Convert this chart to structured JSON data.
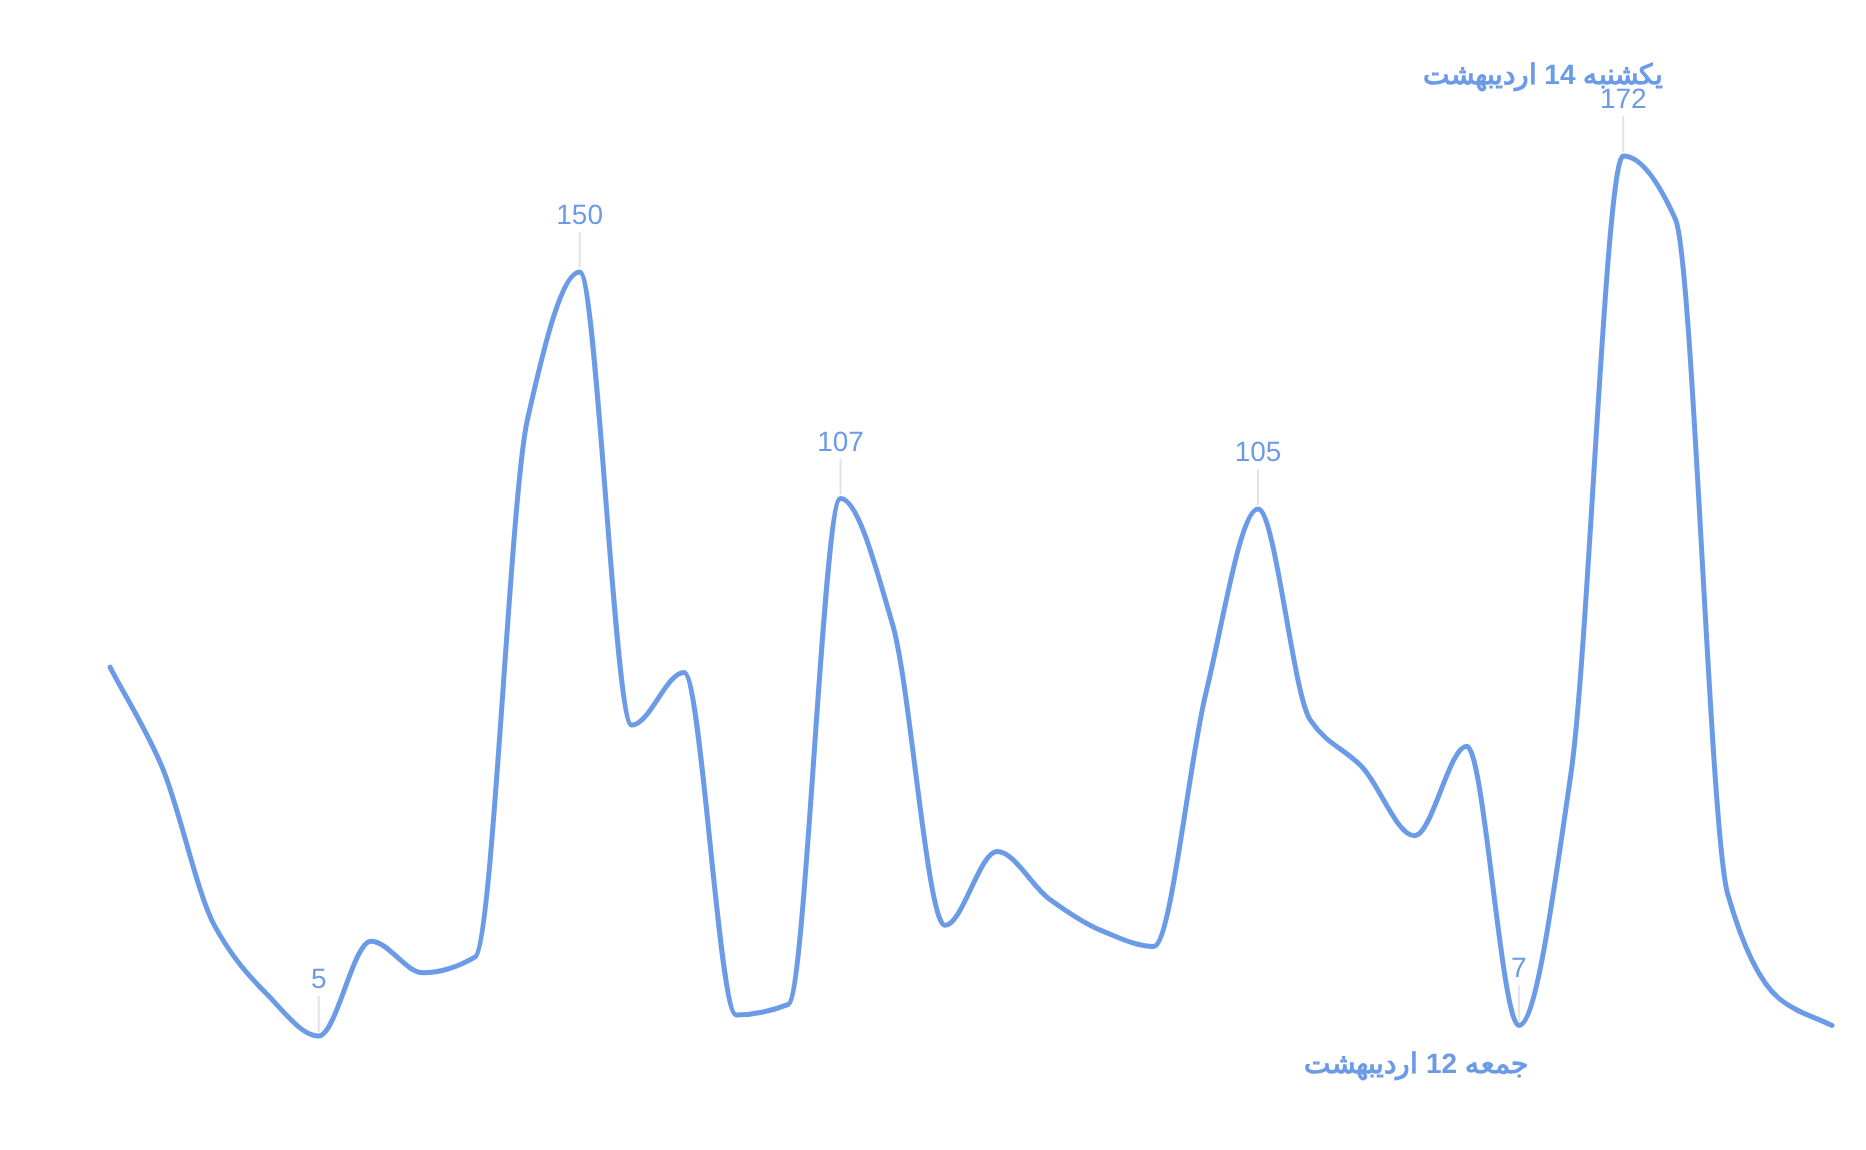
{
  "chart_data": {
    "type": "line",
    "color": "#6b9be6",
    "categories": [
      null,
      null,
      null,
      null,
      null,
      null,
      null,
      null,
      null,
      null,
      null,
      null,
      null,
      null,
      null,
      null,
      null,
      null,
      null,
      null,
      null,
      null,
      null,
      null,
      null,
      null,
      null,
      null,
      null,
      null,
      null,
      null,
      null,
      null
    ],
    "values": [
      75,
      56,
      26,
      13,
      5,
      23,
      17,
      20,
      122,
      150,
      64,
      74,
      9,
      11,
      107,
      83,
      26,
      40,
      31,
      25,
      22,
      70,
      105,
      65,
      56,
      43,
      60,
      7,
      55,
      172,
      160,
      32,
      12,
      7
    ],
    "value_labels": [
      null,
      null,
      null,
      null,
      "5",
      null,
      null,
      null,
      null,
      "150",
      null,
      null,
      null,
      null,
      "107",
      null,
      null,
      null,
      null,
      null,
      null,
      null,
      "105",
      null,
      null,
      null,
      null,
      "7",
      null,
      "172",
      null,
      null,
      null,
      null
    ],
    "annotations": [
      "یکشنبه 14 اردیبهشت",
      "جمعه 12 اردیبهشت"
    ],
    "tick_labels": false
  }
}
